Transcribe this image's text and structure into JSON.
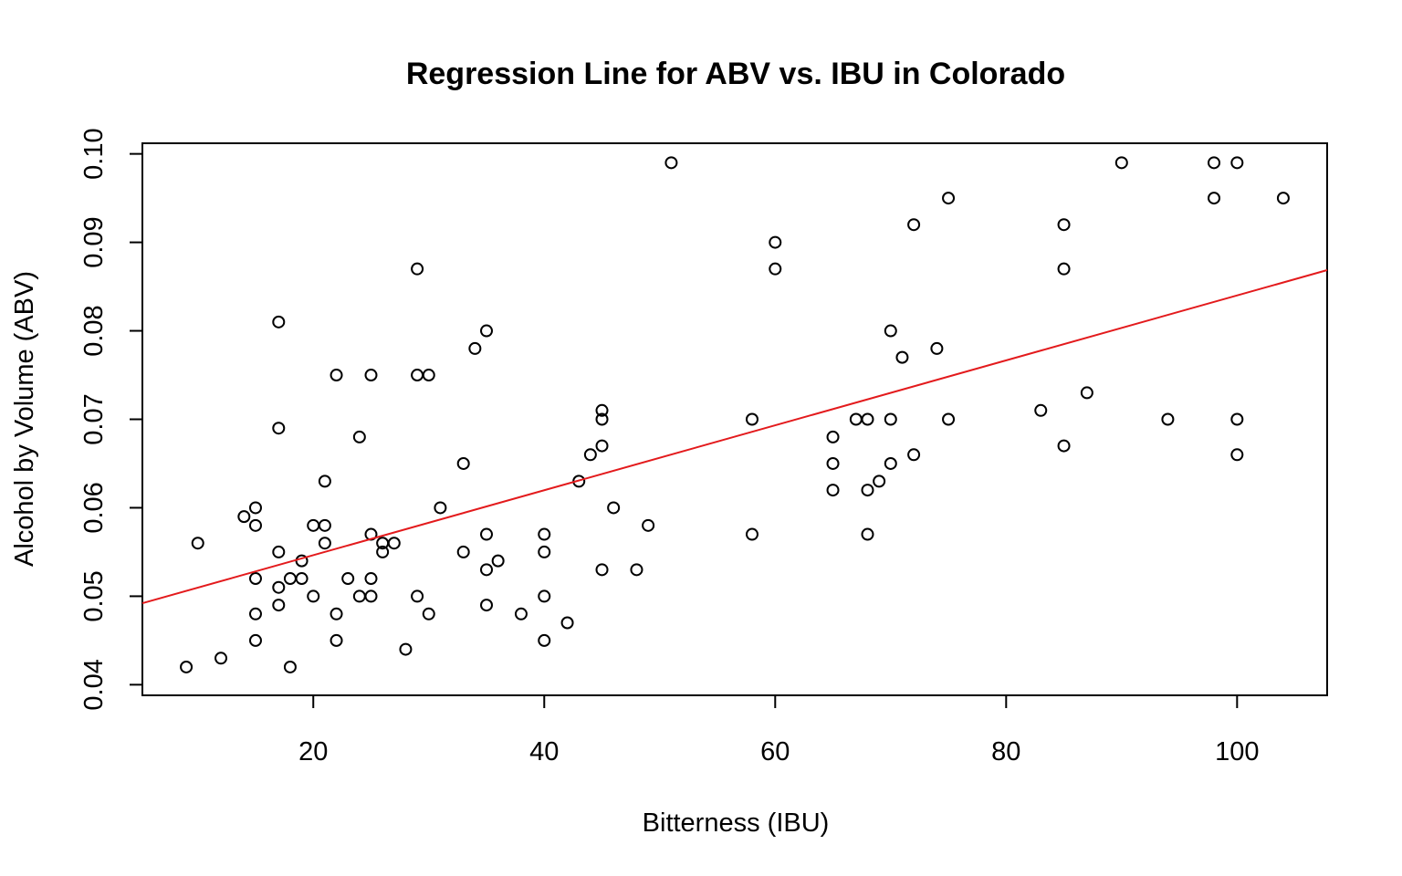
{
  "chart_data": {
    "type": "scatter",
    "title": "Regression Line for ABV vs. IBU in Colorado",
    "xlabel": "Bitterness (IBU)",
    "ylabel": "Alcohol by Volume (ABV)",
    "xlim": [
      5.2,
      107.8
    ],
    "ylim": [
      0.0388,
      0.1012
    ],
    "x_ticks": [
      20,
      40,
      60,
      80,
      100
    ],
    "y_ticks": [
      0.04,
      0.05,
      0.06,
      0.07,
      0.08,
      0.09,
      0.1
    ],
    "x_tick_labels": [
      "20",
      "40",
      "60",
      "80",
      "100"
    ],
    "y_tick_labels": [
      "0.04",
      "0.05",
      "0.06",
      "0.07",
      "0.08",
      "0.09",
      "0.10"
    ],
    "grid": false,
    "colors": {
      "points": "#000000",
      "regression_line": "#e31a1c",
      "frame": "#000000"
    },
    "regression_line": {
      "intercept": 0.0473,
      "slope": 0.000367
    },
    "points": [
      [
        9,
        0.042
      ],
      [
        10,
        0.056
      ],
      [
        12,
        0.043
      ],
      [
        14,
        0.059
      ],
      [
        15,
        0.06
      ],
      [
        15,
        0.058
      ],
      [
        15,
        0.052
      ],
      [
        15,
        0.048
      ],
      [
        15,
        0.045
      ],
      [
        17,
        0.081
      ],
      [
        17,
        0.069
      ],
      [
        17,
        0.055
      ],
      [
        17,
        0.051
      ],
      [
        17,
        0.049
      ],
      [
        18,
        0.052
      ],
      [
        18,
        0.042
      ],
      [
        19,
        0.054
      ],
      [
        19,
        0.052
      ],
      [
        20,
        0.058
      ],
      [
        20,
        0.05
      ],
      [
        21,
        0.063
      ],
      [
        21,
        0.058
      ],
      [
        21,
        0.056
      ],
      [
        22,
        0.075
      ],
      [
        22,
        0.048
      ],
      [
        22,
        0.045
      ],
      [
        23,
        0.052
      ],
      [
        24,
        0.068
      ],
      [
        24,
        0.05
      ],
      [
        25,
        0.075
      ],
      [
        25,
        0.057
      ],
      [
        25,
        0.052
      ],
      [
        25,
        0.05
      ],
      [
        26,
        0.056
      ],
      [
        26,
        0.055
      ],
      [
        27,
        0.056
      ],
      [
        28,
        0.044
      ],
      [
        29,
        0.087
      ],
      [
        29,
        0.075
      ],
      [
        29,
        0.05
      ],
      [
        30,
        0.075
      ],
      [
        30,
        0.048
      ],
      [
        31,
        0.06
      ],
      [
        33,
        0.065
      ],
      [
        33,
        0.055
      ],
      [
        34,
        0.078
      ],
      [
        35,
        0.08
      ],
      [
        35,
        0.057
      ],
      [
        35,
        0.053
      ],
      [
        35,
        0.049
      ],
      [
        36,
        0.054
      ],
      [
        38,
        0.048
      ],
      [
        40,
        0.057
      ],
      [
        40,
        0.055
      ],
      [
        40,
        0.05
      ],
      [
        40,
        0.045
      ],
      [
        42,
        0.047
      ],
      [
        43,
        0.063
      ],
      [
        44,
        0.066
      ],
      [
        45,
        0.071
      ],
      [
        45,
        0.07
      ],
      [
        45,
        0.067
      ],
      [
        45,
        0.053
      ],
      [
        46,
        0.06
      ],
      [
        48,
        0.053
      ],
      [
        49,
        0.058
      ],
      [
        51,
        0.099
      ],
      [
        58,
        0.07
      ],
      [
        58,
        0.057
      ],
      [
        60,
        0.09
      ],
      [
        60,
        0.087
      ],
      [
        65,
        0.068
      ],
      [
        65,
        0.065
      ],
      [
        65,
        0.062
      ],
      [
        67,
        0.07
      ],
      [
        68,
        0.07
      ],
      [
        68,
        0.062
      ],
      [
        68,
        0.057
      ],
      [
        69,
        0.063
      ],
      [
        70,
        0.08
      ],
      [
        70,
        0.07
      ],
      [
        70,
        0.065
      ],
      [
        71,
        0.077
      ],
      [
        72,
        0.092
      ],
      [
        72,
        0.066
      ],
      [
        74,
        0.078
      ],
      [
        75,
        0.095
      ],
      [
        75,
        0.07
      ],
      [
        83,
        0.071
      ],
      [
        85,
        0.092
      ],
      [
        85,
        0.087
      ],
      [
        85,
        0.067
      ],
      [
        87,
        0.073
      ],
      [
        90,
        0.099
      ],
      [
        94,
        0.07
      ],
      [
        98,
        0.099
      ],
      [
        98,
        0.095
      ],
      [
        100,
        0.099
      ],
      [
        100,
        0.07
      ],
      [
        100,
        0.066
      ],
      [
        104,
        0.095
      ]
    ]
  }
}
